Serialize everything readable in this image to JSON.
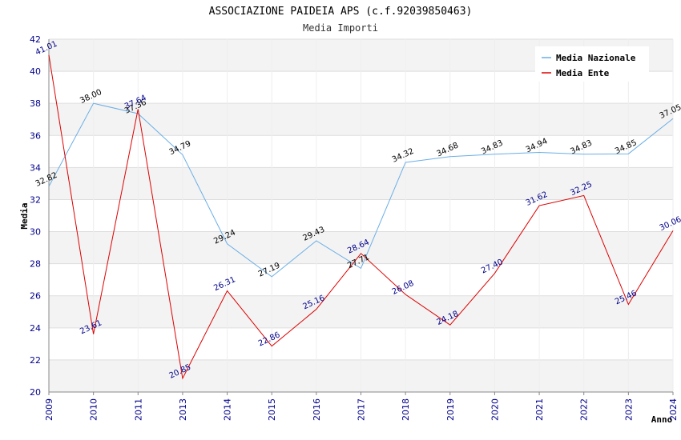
{
  "chart_data": {
    "type": "line",
    "title": "ASSOCIAZIONE PAIDEIA APS (c.f.92039850463)",
    "subtitle": "Media Importi",
    "xlabel": "Anno",
    "ylabel": "Media",
    "ylim": [
      20,
      42
    ],
    "ytick_step": 2,
    "grid": true,
    "legend_position": "top-right",
    "categories": [
      "2009",
      "2010",
      "2011",
      "2013",
      "2014",
      "2015",
      "2016",
      "2017",
      "2018",
      "2019",
      "2020",
      "2021",
      "2022",
      "2023",
      "2024"
    ],
    "series": [
      {
        "name": "Media Nazionale",
        "color": "#6aaee6",
        "values": [
          32.82,
          38.0,
          37.36,
          34.79,
          29.24,
          27.19,
          29.43,
          27.71,
          34.32,
          34.68,
          34.83,
          34.94,
          34.83,
          34.85,
          37.05
        ],
        "labels": [
          "32.82",
          "38.00",
          "37.36",
          "34.79",
          "29.24",
          "27.19",
          "29.43",
          "27.71",
          "34.32",
          "34.68",
          "34.83",
          "34.94",
          "34.83",
          "34.85",
          "37.05"
        ]
      },
      {
        "name": "Media Ente",
        "color": "#dd0000",
        "values": [
          41.01,
          23.61,
          37.64,
          20.85,
          26.31,
          22.86,
          25.16,
          28.64,
          26.08,
          24.18,
          27.4,
          31.62,
          32.25,
          25.46,
          30.06
        ],
        "labels": [
          "41.01",
          "23.61",
          "37.64",
          "20.85",
          "26.31",
          "22.86",
          "25.16",
          "28.64",
          "26.08",
          "24.18",
          "27.40",
          "31.62",
          "32.25",
          "25.46",
          "30.06"
        ]
      }
    ]
  }
}
